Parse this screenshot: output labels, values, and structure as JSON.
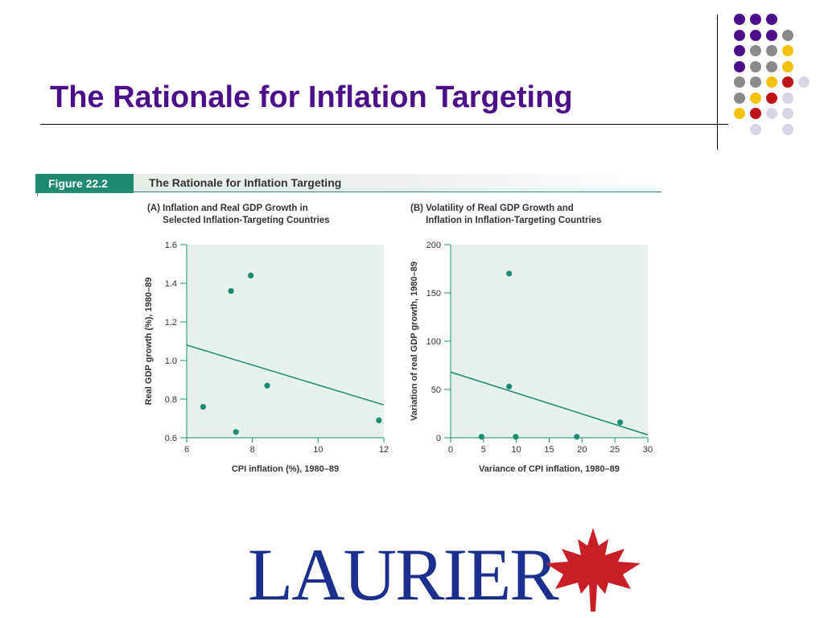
{
  "slide": {
    "title": "The Rationale for Inflation Targeting"
  },
  "decor": {
    "dot_colors": [
      "#4b0f8a",
      "#8a8a8a",
      "#f2c20f",
      "#c0121b",
      "#d6d6e6"
    ]
  },
  "figure": {
    "label": "Figure 22.2",
    "title": "The Rationale for Inflation Targeting"
  },
  "chart_data": [
    {
      "type": "scatter",
      "title": "(A) Inflation and Real GDP Growth in\n      Selected Inflation-Targeting Countries",
      "xlabel": "CPI inflation (%), 1980–89",
      "ylabel": "Real GDP growth (%), 1980–89",
      "xlim": [
        6,
        12
      ],
      "ylim": [
        0.6,
        1.6
      ],
      "xticks": [
        "6",
        "8",
        "10",
        "12"
      ],
      "yticks": [
        "0.6",
        "0.8",
        "1.0",
        "1.2",
        "1.4",
        "1.6"
      ],
      "points": [
        [
          6.5,
          0.76
        ],
        [
          7.35,
          1.36
        ],
        [
          7.5,
          0.63
        ],
        [
          7.95,
          1.44
        ],
        [
          8.45,
          0.87
        ],
        [
          11.85,
          0.69
        ]
      ],
      "trendline": [
        [
          6,
          1.08
        ],
        [
          12,
          0.77
        ]
      ],
      "colors": {
        "point": "#1f8a72",
        "line": "#1f8a72",
        "plot_bg": "#e5f1ea"
      }
    },
    {
      "type": "scatter",
      "title": "(B) Volatility of Real GDP Growth and\n      Inflation in Inflation-Targeting Countries",
      "xlabel": "Variance of CPI inflation, 1980–89",
      "ylabel": "Variation of real GDP growth, 1980–89",
      "xlim": [
        0,
        30
      ],
      "ylim": [
        0,
        200
      ],
      "xticks": [
        "0",
        "5",
        "10",
        "15",
        "20",
        "25",
        "30"
      ],
      "yticks": [
        "0",
        "50",
        "100",
        "150",
        "200"
      ],
      "points": [
        [
          4.7,
          1
        ],
        [
          8.9,
          170
        ],
        [
          8.9,
          53
        ],
        [
          9.9,
          1
        ],
        [
          19.2,
          1
        ],
        [
          25.8,
          16
        ]
      ],
      "trendline": [
        [
          0,
          68
        ],
        [
          30,
          3
        ]
      ],
      "colors": {
        "point": "#1f8a72",
        "line": "#1f8a72",
        "plot_bg": "#e5f1ea"
      }
    }
  ],
  "logo": {
    "text": "LAURIER",
    "leaf_color": "#c81e28"
  }
}
